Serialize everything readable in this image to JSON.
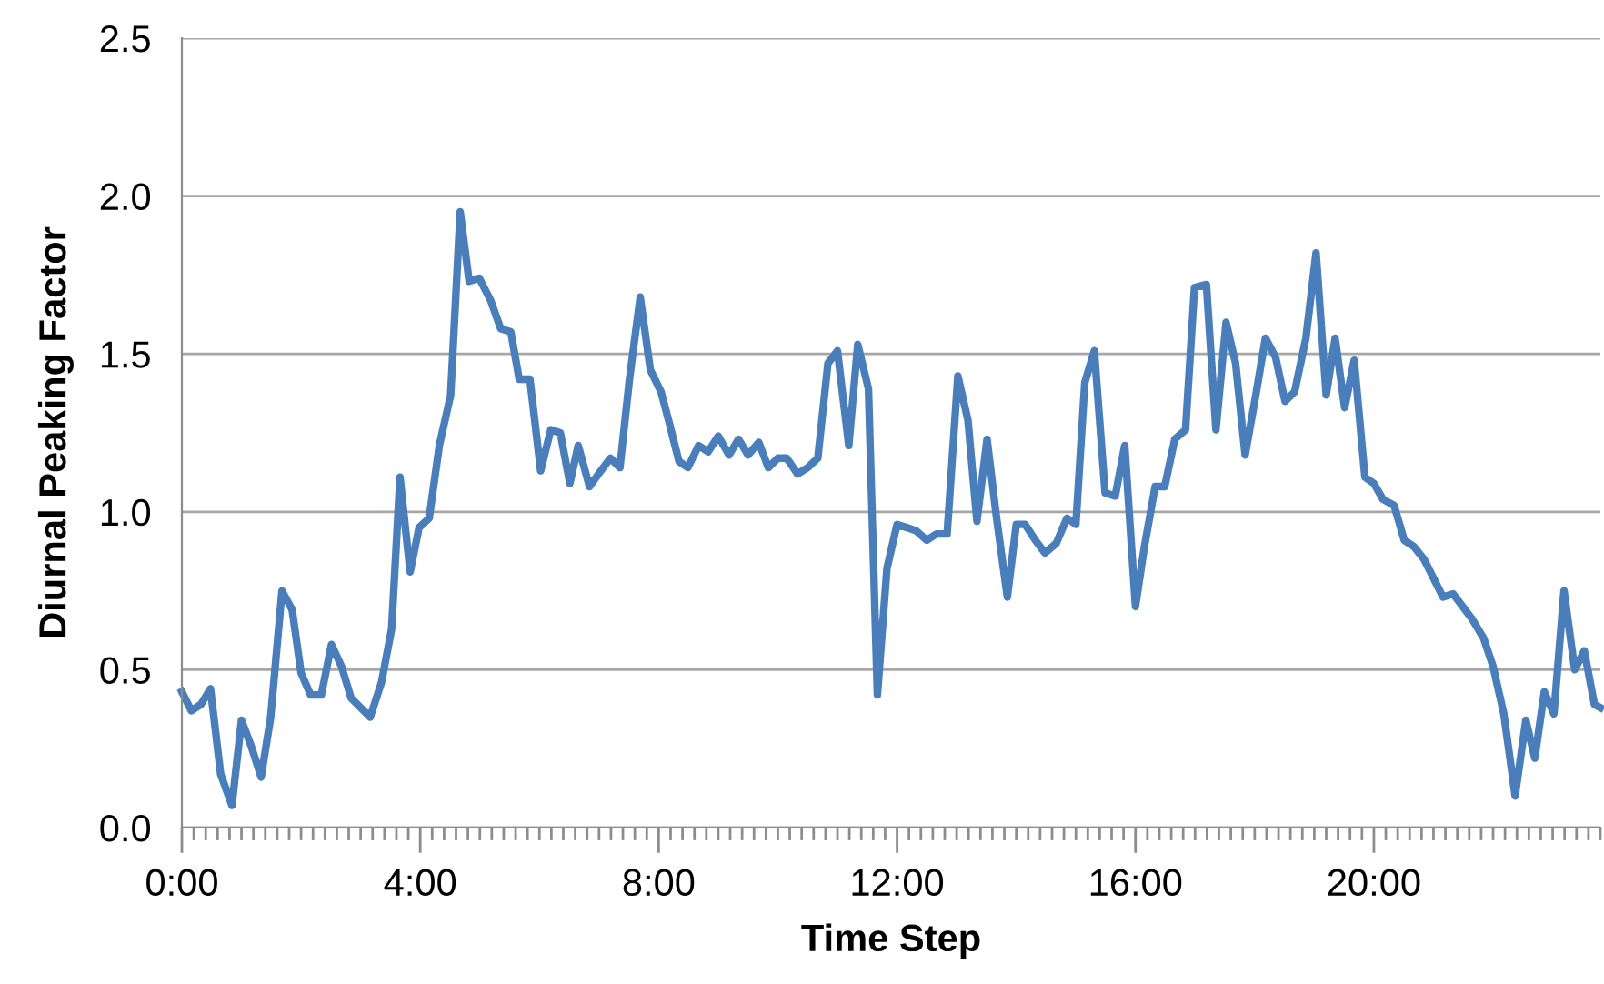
{
  "chart_data": {
    "type": "line",
    "xlabel": "Time Step",
    "ylabel": "Diurnal Peaking Factor",
    "series": [
      {
        "color": "#4a7ebb",
        "x": [
          0,
          0.16,
          0.32,
          0.48,
          0.65,
          0.84,
          1.0,
          1.16,
          1.33,
          1.49,
          1.68,
          1.85,
          2.0,
          2.16,
          2.34,
          2.51,
          2.68,
          2.84,
          3.16,
          3.35,
          3.52,
          3.66,
          3.83,
          3.98,
          4.15,
          4.32,
          4.51,
          4.67,
          4.82,
          4.99,
          5.18,
          5.35,
          5.52,
          5.66,
          5.84,
          6.02,
          6.19,
          6.35,
          6.51,
          6.65,
          6.84,
          7.03,
          7.19,
          7.35,
          7.51,
          7.69,
          7.86,
          8.04,
          8.18,
          8.34,
          8.49,
          8.67,
          8.83,
          9.0,
          9.18,
          9.34,
          9.5,
          9.68,
          9.84,
          10.0,
          10.15,
          10.33,
          10.5,
          10.67,
          10.84,
          11.0,
          11.19,
          11.34,
          11.52,
          11.67,
          11.83,
          12.0,
          12.17,
          12.32,
          12.5,
          12.66,
          12.84,
          13.02,
          13.19,
          13.34,
          13.51,
          13.67,
          13.85,
          14.0,
          14.15,
          14.32,
          14.48,
          14.67,
          14.85,
          15.0,
          15.15,
          15.31,
          15.49,
          15.66,
          15.82,
          16.0,
          16.15,
          16.33,
          16.49,
          16.66,
          16.84,
          16.99,
          17.19,
          17.35,
          17.52,
          17.68,
          17.84,
          18.01,
          18.18,
          18.35,
          18.51,
          18.67,
          18.86,
          19.03,
          19.2,
          19.35,
          19.51,
          19.67,
          19.85,
          20.0,
          20.15,
          20.34,
          20.51,
          20.67,
          20.84,
          21.0,
          21.16,
          21.33,
          21.49,
          21.65,
          21.84,
          22.0,
          22.18,
          22.37,
          22.55,
          22.7,
          22.86,
          23.02,
          23.19,
          23.37,
          23.53,
          23.7,
          23.8
        ],
        "values": [
          0.43,
          0.37,
          0.39,
          0.44,
          0.17,
          0.07,
          0.34,
          0.26,
          0.16,
          0.35,
          0.75,
          0.69,
          0.49,
          0.42,
          0.42,
          0.58,
          0.51,
          0.41,
          0.35,
          0.46,
          0.63,
          1.11,
          0.81,
          0.95,
          0.98,
          1.21,
          1.37,
          1.95,
          1.73,
          1.74,
          1.67,
          1.58,
          1.57,
          1.42,
          1.42,
          1.13,
          1.26,
          1.25,
          1.09,
          1.21,
          1.08,
          1.13,
          1.17,
          1.14,
          1.42,
          1.68,
          1.45,
          1.38,
          1.28,
          1.16,
          1.14,
          1.21,
          1.19,
          1.24,
          1.18,
          1.23,
          1.18,
          1.22,
          1.14,
          1.17,
          1.17,
          1.12,
          1.14,
          1.17,
          1.47,
          1.51,
          1.21,
          1.53,
          1.39,
          0.42,
          0.82,
          0.96,
          0.95,
          0.94,
          0.91,
          0.93,
          0.93,
          1.43,
          1.29,
          0.97,
          1.23,
          0.98,
          0.73,
          0.96,
          0.96,
          0.91,
          0.87,
          0.9,
          0.98,
          0.96,
          1.41,
          1.51,
          1.06,
          1.05,
          1.21,
          0.7,
          0.89,
          1.08,
          1.08,
          1.23,
          1.26,
          1.71,
          1.72,
          1.26,
          1.6,
          1.47,
          1.18,
          1.36,
          1.55,
          1.49,
          1.35,
          1.38,
          1.55,
          1.82,
          1.37,
          1.55,
          1.33,
          1.48,
          1.11,
          1.09,
          1.04,
          1.02,
          0.91,
          0.89,
          0.85,
          0.79,
          0.73,
          0.74,
          0.7,
          0.66,
          0.6,
          0.51,
          0.36,
          0.1,
          0.34,
          0.22,
          0.43,
          0.36,
          0.75,
          0.5,
          0.56,
          0.39,
          0.38
        ]
      }
    ],
    "xlim": [
      0,
      23.8
    ],
    "xticks": [
      {
        "value": 0,
        "label": "0:00"
      },
      {
        "value": 0.2,
        "label": null
      },
      {
        "value": 0.4,
        "label": null
      },
      {
        "value": 0.6,
        "label": null
      },
      {
        "value": 0.8,
        "label": null
      },
      {
        "value": 1.0,
        "label": null
      },
      {
        "value": 1.2,
        "label": null
      },
      {
        "value": 1.4,
        "label": null
      },
      {
        "value": 1.6,
        "label": null
      },
      {
        "value": 1.8,
        "label": null
      },
      {
        "value": 2.0,
        "label": null
      },
      {
        "value": 2.2,
        "label": null
      },
      {
        "value": 2.4,
        "label": null
      },
      {
        "value": 2.6,
        "label": null
      },
      {
        "value": 2.8,
        "label": null
      },
      {
        "value": 3.0,
        "label": null
      },
      {
        "value": 3.2,
        "label": null
      },
      {
        "value": 3.4,
        "label": null
      },
      {
        "value": 3.6,
        "label": null
      },
      {
        "value": 3.8,
        "label": null
      },
      {
        "value": 4,
        "label": "4:00"
      },
      {
        "value": 4.2,
        "label": null
      },
      {
        "value": 4.4,
        "label": null
      },
      {
        "value": 4.6,
        "label": null
      },
      {
        "value": 4.8,
        "label": null
      },
      {
        "value": 5.0,
        "label": null
      },
      {
        "value": 5.2,
        "label": null
      },
      {
        "value": 5.4,
        "label": null
      },
      {
        "value": 5.6,
        "label": null
      },
      {
        "value": 5.8,
        "label": null
      },
      {
        "value": 6.0,
        "label": null
      },
      {
        "value": 6.2,
        "label": null
      },
      {
        "value": 6.4,
        "label": null
      },
      {
        "value": 6.6,
        "label": null
      },
      {
        "value": 6.8,
        "label": null
      },
      {
        "value": 7.0,
        "label": null
      },
      {
        "value": 7.2,
        "label": null
      },
      {
        "value": 7.4,
        "label": null
      },
      {
        "value": 7.6,
        "label": null
      },
      {
        "value": 7.8,
        "label": null
      },
      {
        "value": 8,
        "label": "8:00"
      },
      {
        "value": 8.2,
        "label": null
      },
      {
        "value": 8.4,
        "label": null
      },
      {
        "value": 8.6,
        "label": null
      },
      {
        "value": 8.8,
        "label": null
      },
      {
        "value": 9.0,
        "label": null
      },
      {
        "value": 9.2,
        "label": null
      },
      {
        "value": 9.4,
        "label": null
      },
      {
        "value": 9.6,
        "label": null
      },
      {
        "value": 9.8,
        "label": null
      },
      {
        "value": 10.0,
        "label": null
      },
      {
        "value": 10.2,
        "label": null
      },
      {
        "value": 10.4,
        "label": null
      },
      {
        "value": 10.6,
        "label": null
      },
      {
        "value": 10.8,
        "label": null
      },
      {
        "value": 11.0,
        "label": null
      },
      {
        "value": 11.2,
        "label": null
      },
      {
        "value": 11.4,
        "label": null
      },
      {
        "value": 11.6,
        "label": null
      },
      {
        "value": 11.8,
        "label": null
      },
      {
        "value": 12,
        "label": "12:00"
      },
      {
        "value": 12.2,
        "label": null
      },
      {
        "value": 12.4,
        "label": null
      },
      {
        "value": 12.6,
        "label": null
      },
      {
        "value": 12.8,
        "label": null
      },
      {
        "value": 13.0,
        "label": null
      },
      {
        "value": 13.2,
        "label": null
      },
      {
        "value": 13.4,
        "label": null
      },
      {
        "value": 13.6,
        "label": null
      },
      {
        "value": 13.8,
        "label": null
      },
      {
        "value": 14.0,
        "label": null
      },
      {
        "value": 14.2,
        "label": null
      },
      {
        "value": 14.4,
        "label": null
      },
      {
        "value": 14.6,
        "label": null
      },
      {
        "value": 14.8,
        "label": null
      },
      {
        "value": 15.0,
        "label": null
      },
      {
        "value": 15.2,
        "label": null
      },
      {
        "value": 15.4,
        "label": null
      },
      {
        "value": 15.6,
        "label": null
      },
      {
        "value": 15.8,
        "label": null
      },
      {
        "value": 16,
        "label": "16:00"
      },
      {
        "value": 16.2,
        "label": null
      },
      {
        "value": 16.4,
        "label": null
      },
      {
        "value": 16.6,
        "label": null
      },
      {
        "value": 16.8,
        "label": null
      },
      {
        "value": 17.0,
        "label": null
      },
      {
        "value": 17.2,
        "label": null
      },
      {
        "value": 17.4,
        "label": null
      },
      {
        "value": 17.6,
        "label": null
      },
      {
        "value": 17.8,
        "label": null
      },
      {
        "value": 18.0,
        "label": null
      },
      {
        "value": 18.2,
        "label": null
      },
      {
        "value": 18.4,
        "label": null
      },
      {
        "value": 18.6,
        "label": null
      },
      {
        "value": 18.8,
        "label": null
      },
      {
        "value": 19.0,
        "label": null
      },
      {
        "value": 19.2,
        "label": null
      },
      {
        "value": 19.4,
        "label": null
      },
      {
        "value": 19.6,
        "label": null
      },
      {
        "value": 19.8,
        "label": null
      },
      {
        "value": 20,
        "label": "20:00"
      },
      {
        "value": 20.2,
        "label": null
      },
      {
        "value": 20.4,
        "label": null
      },
      {
        "value": 20.6,
        "label": null
      },
      {
        "value": 20.8,
        "label": null
      },
      {
        "value": 21.0,
        "label": null
      },
      {
        "value": 21.2,
        "label": null
      },
      {
        "value": 21.4,
        "label": null
      },
      {
        "value": 21.6,
        "label": null
      },
      {
        "value": 21.8,
        "label": null
      },
      {
        "value": 22.0,
        "label": null
      },
      {
        "value": 22.2,
        "label": null
      },
      {
        "value": 22.4,
        "label": null
      },
      {
        "value": 22.6,
        "label": null
      },
      {
        "value": 22.8,
        "label": null
      },
      {
        "value": 23.0,
        "label": null
      },
      {
        "value": 23.2,
        "label": null
      },
      {
        "value": 23.4,
        "label": null
      },
      {
        "value": 23.6,
        "label": null
      },
      {
        "value": 23.8,
        "label": null
      }
    ],
    "ylim": [
      0,
      2.5
    ],
    "yticks": [
      {
        "value": 0,
        "label": "0.0"
      },
      {
        "value": 0.5,
        "label": "0.5"
      },
      {
        "value": 1.0,
        "label": "1.0"
      },
      {
        "value": 1.5,
        "label": "1.5"
      },
      {
        "value": 2.0,
        "label": "2.0"
      },
      {
        "value": 2.5,
        "label": "2.5"
      }
    ],
    "grid": "y",
    "marker": "none",
    "line_style": "solid"
  }
}
